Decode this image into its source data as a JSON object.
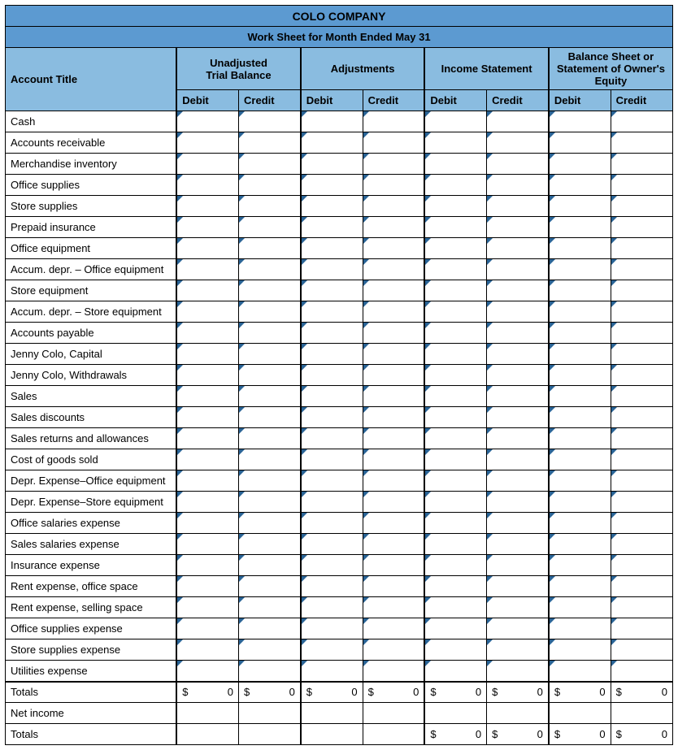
{
  "company": "COLO COMPANY",
  "subtitle": "Work Sheet for Month Ended May 31",
  "column_groups": [
    {
      "label_line1": "Unadjusted",
      "label_line2": "Trial Balance"
    },
    {
      "label_line1": "Adjustments",
      "label_line2": ""
    },
    {
      "label_line1": "Income Statement",
      "label_line2": ""
    },
    {
      "label_line1": "Balance Sheet or",
      "label_line2": "Statement of Owner's",
      "label_line3": "Equity"
    }
  ],
  "account_title_header": "Account Title",
  "debit_header": "Debit",
  "credit_header": "Credit",
  "accounts": [
    "Cash",
    "Accounts receivable",
    "Merchandise inventory",
    "Office supplies",
    "Store supplies",
    "Prepaid insurance",
    "Office equipment",
    "Accum. depr. – Office equipment",
    "Store equipment",
    "Accum. depr. – Store equipment",
    "Accounts payable",
    "Jenny Colo, Capital",
    "Jenny Colo, Withdrawals",
    "Sales",
    "Sales discounts",
    "Sales returns and allowances",
    "Cost of goods sold",
    "Depr. Expense–Office equipment",
    "Depr. Expense–Store equipment",
    "Office salaries expense",
    "Sales salaries expense",
    "Insurance expense",
    "Rent expense, office space",
    "Rent expense, selling space",
    "Office supplies expense",
    "Store supplies expense",
    "Utilities expense"
  ],
  "totals_label": "Totals",
  "net_income_label": "Net income",
  "currency_symbol": "$",
  "totals_row1": [
    "0",
    "0",
    "0",
    "0",
    "0",
    "0",
    "0",
    "0"
  ],
  "totals_row2_shown": [
    false,
    false,
    false,
    false,
    true,
    true,
    true,
    true
  ],
  "totals_row2": [
    "",
    "",
    "",
    "",
    "0",
    "0",
    "0",
    "0"
  ],
  "colors": {
    "header_bg": "#5c9ad1",
    "group_bg": "#8abce0",
    "triangle": "#2a6496",
    "border": "#000000",
    "background": "#ffffff"
  }
}
